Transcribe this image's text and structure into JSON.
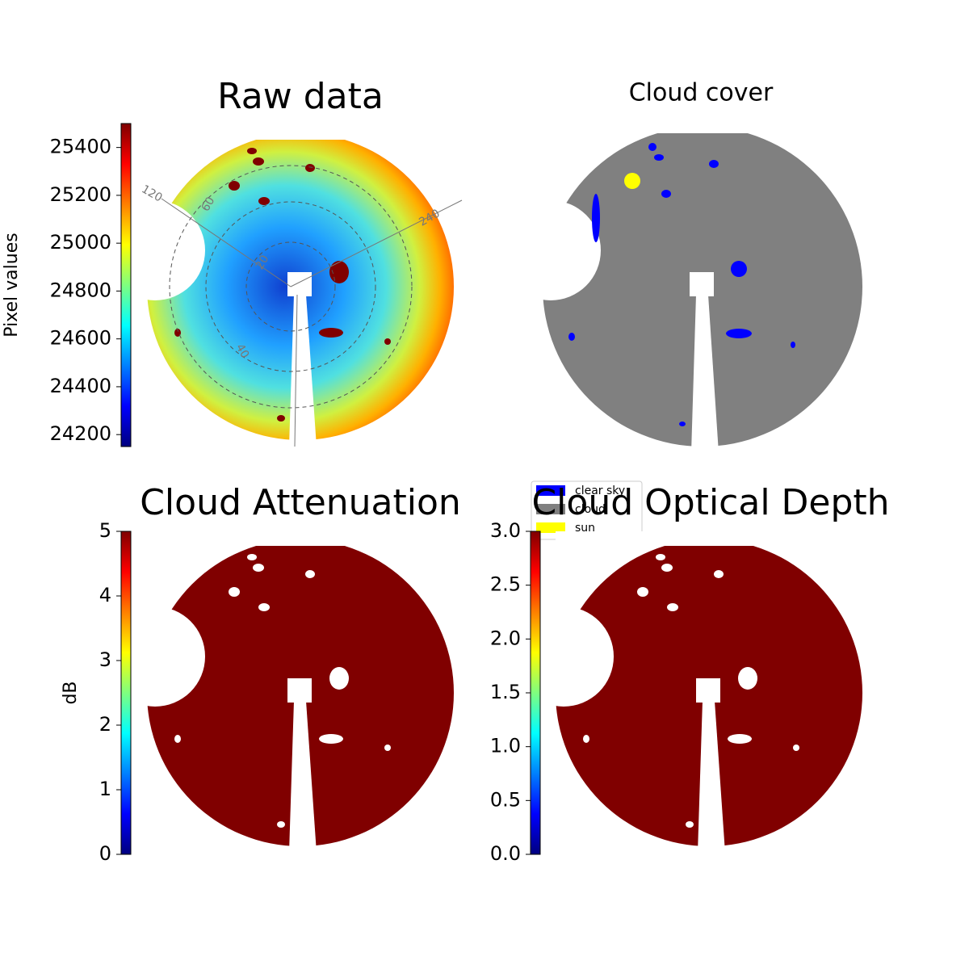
{
  "chart_data": [
    {
      "type": "image",
      "title": "Raw data",
      "colormap": "jet",
      "ylabel": "Pixel values",
      "ylim": [
        24150,
        25500
      ],
      "yticks": [
        24200,
        24400,
        24600,
        24800,
        25000,
        25200,
        25400
      ],
      "polar_labels": [
        "120",
        "240",
        "20",
        "40",
        "60"
      ]
    },
    {
      "type": "categorical-image",
      "title": "Cloud cover",
      "legend": [
        {
          "name": "clear sky",
          "color": "#0000ff"
        },
        {
          "name": "cloud",
          "color": "#808080"
        },
        {
          "name": "sun",
          "color": "#ffff00"
        }
      ]
    },
    {
      "type": "image",
      "title": "Cloud Attenuation",
      "colormap": "jet",
      "ylabel": "dB",
      "ylim": [
        0,
        5
      ],
      "yticks": [
        0,
        1,
        2,
        3,
        4,
        5
      ]
    },
    {
      "type": "image",
      "title": "Cloud Optical Depth",
      "colormap": "jet",
      "ylim": [
        0,
        3
      ],
      "yticks": [
        {
          "value": 0,
          "label": "0.0"
        },
        {
          "value": 0.5,
          "label": "0.5"
        },
        {
          "value": 1,
          "label": "1.0"
        },
        {
          "value": 1.5,
          "label": "1.5"
        },
        {
          "value": 2,
          "label": "2.0"
        },
        {
          "value": 2.5,
          "label": "2.5"
        },
        {
          "value": 3,
          "label": "3.0"
        }
      ]
    }
  ]
}
